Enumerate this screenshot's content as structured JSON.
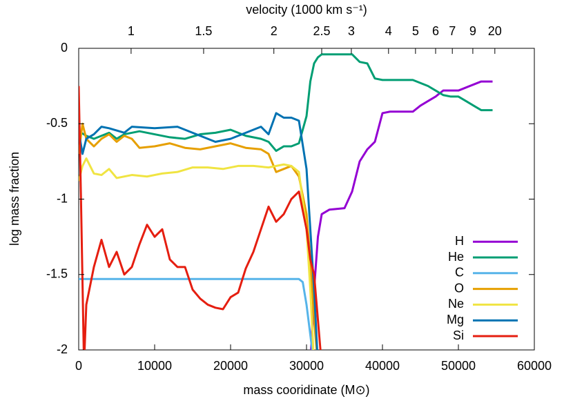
{
  "chart_data": {
    "type": "line",
    "xlabel": "mass cooridinate (M⊙)",
    "ylabel": "log mass fraction",
    "x2label": "velocity (1000 km s⁻¹)",
    "xlim": [
      0,
      60000
    ],
    "ylim": [
      -2,
      0
    ],
    "xticks": [
      0,
      10000,
      20000,
      30000,
      40000,
      50000,
      60000
    ],
    "yticks": [
      -2,
      -1.5,
      -1,
      -0.5,
      0
    ],
    "x2ticks": [
      1,
      1.5,
      2,
      2.5,
      3,
      4,
      5,
      6,
      7,
      9,
      20
    ],
    "x2tick_mass": [
      6900,
      16450,
      25700,
      32000,
      35900,
      40800,
      44350,
      47000,
      49200,
      51900,
      54800
    ],
    "legend": "lower right",
    "series": [
      {
        "name": "H",
        "color": "#9400d3",
        "x": [
          30500,
          31000,
          31500,
          32000,
          33000,
          35000,
          36000,
          37000,
          38000,
          39000,
          40000,
          41000,
          44000,
          45000,
          46000,
          47000,
          48000,
          50000,
          51000,
          52000,
          53000,
          54500
        ],
        "values": [
          -2.1,
          -1.6,
          -1.25,
          -1.1,
          -1.07,
          -1.06,
          -0.95,
          -0.75,
          -0.67,
          -0.62,
          -0.43,
          -0.42,
          -0.42,
          -0.38,
          -0.35,
          -0.32,
          -0.28,
          -0.28,
          -0.26,
          -0.24,
          -0.22,
          -0.22
        ]
      },
      {
        "name": "He",
        "color": "#009e73",
        "x": [
          0,
          1000,
          2000,
          3000,
          4000,
          5000,
          6000,
          8000,
          10000,
          12000,
          14000,
          16000,
          18000,
          20000,
          22000,
          24000,
          25000,
          26000,
          27000,
          28000,
          29000,
          30000,
          30500,
          31000,
          31500,
          32000,
          36000,
          37000,
          38000,
          39000,
          40000,
          44000,
          45000,
          46000,
          47000,
          48000,
          49000,
          50000,
          51000,
          52000,
          53000,
          54500
        ],
        "values": [
          -0.55,
          -0.58,
          -0.6,
          -0.58,
          -0.56,
          -0.6,
          -0.57,
          -0.55,
          -0.57,
          -0.59,
          -0.6,
          -0.57,
          -0.56,
          -0.54,
          -0.58,
          -0.6,
          -0.62,
          -0.68,
          -0.65,
          -0.65,
          -0.63,
          -0.45,
          -0.22,
          -0.1,
          -0.06,
          -0.04,
          -0.04,
          -0.09,
          -0.1,
          -0.2,
          -0.21,
          -0.21,
          -0.23,
          -0.25,
          -0.28,
          -0.31,
          -0.32,
          -0.32,
          -0.35,
          -0.38,
          -0.41,
          -0.41
        ]
      },
      {
        "name": "C",
        "color": "#56b4e9",
        "x": [
          0,
          5000,
          10000,
          15000,
          20000,
          25000,
          29000,
          29500,
          30000,
          30500,
          31000
        ],
        "values": [
          -1.53,
          -1.53,
          -1.53,
          -1.53,
          -1.53,
          -1.53,
          -1.53,
          -1.55,
          -1.7,
          -1.9,
          -2.1
        ]
      },
      {
        "name": "O",
        "color": "#e69f00",
        "x": [
          0,
          500,
          1000,
          2000,
          3000,
          4000,
          5000,
          6000,
          7000,
          8000,
          10000,
          12000,
          14000,
          16000,
          18000,
          20000,
          22000,
          24000,
          25000,
          26000,
          27000,
          28000,
          29000,
          30000,
          30500,
          31000,
          31500
        ],
        "values": [
          -0.7,
          -0.5,
          -0.6,
          -0.65,
          -0.6,
          -0.57,
          -0.62,
          -0.58,
          -0.6,
          -0.66,
          -0.65,
          -0.63,
          -0.66,
          -0.67,
          -0.65,
          -0.63,
          -0.66,
          -0.67,
          -0.7,
          -0.82,
          -0.8,
          -0.78,
          -0.85,
          -1.1,
          -1.4,
          -1.8,
          -2.1
        ]
      },
      {
        "name": "Ne",
        "color": "#f0e442",
        "x": [
          0,
          500,
          1000,
          2000,
          3000,
          4000,
          5000,
          7000,
          9000,
          11000,
          13000,
          15000,
          17000,
          19000,
          21000,
          23000,
          25000,
          27000,
          28000,
          29000,
          30000,
          30500,
          31000
        ],
        "values": [
          -0.88,
          -0.78,
          -0.73,
          -0.83,
          -0.84,
          -0.8,
          -0.86,
          -0.84,
          -0.85,
          -0.83,
          -0.82,
          -0.79,
          -0.79,
          -0.8,
          -0.78,
          -0.78,
          -0.79,
          -0.77,
          -0.78,
          -0.82,
          -1.2,
          -1.6,
          -2.1
        ]
      },
      {
        "name": "Mg",
        "color": "#0072b2",
        "x": [
          0,
          500,
          1000,
          2000,
          3000,
          4000,
          6000,
          7000,
          10000,
          13000,
          15000,
          17000,
          18000,
          20000,
          22000,
          24000,
          25000,
          26000,
          27000,
          28000,
          29000,
          30000,
          30500,
          31000,
          31500
        ],
        "values": [
          -0.55,
          -0.7,
          -0.6,
          -0.57,
          -0.52,
          -0.53,
          -0.56,
          -0.52,
          -0.53,
          -0.52,
          -0.56,
          -0.6,
          -0.62,
          -0.6,
          -0.56,
          -0.52,
          -0.57,
          -0.43,
          -0.46,
          -0.46,
          -0.48,
          -0.8,
          -1.2,
          -1.6,
          -2.1
        ]
      },
      {
        "name": "Si",
        "color": "#e51e10",
        "x": [
          0,
          300,
          700,
          1000,
          2000,
          3000,
          4000,
          5000,
          6000,
          7000,
          8000,
          9000,
          10000,
          11000,
          12000,
          13000,
          14000,
          15000,
          16000,
          17000,
          18000,
          19000,
          20000,
          21000,
          22000,
          23000,
          24000,
          25000,
          26000,
          27000,
          28000,
          29000,
          30000,
          30500,
          31000,
          31500,
          32000
        ],
        "values": [
          -0.25,
          -1.0,
          -2.1,
          -1.7,
          -1.45,
          -1.27,
          -1.45,
          -1.35,
          -1.5,
          -1.45,
          -1.3,
          -1.17,
          -1.25,
          -1.2,
          -1.4,
          -1.45,
          -1.45,
          -1.6,
          -1.66,
          -1.7,
          -1.72,
          -1.73,
          -1.65,
          -1.62,
          -1.46,
          -1.35,
          -1.2,
          -1.05,
          -1.15,
          -1.1,
          -1.0,
          -0.95,
          -1.2,
          -1.4,
          -1.5,
          -1.8,
          -2.1
        ]
      }
    ]
  }
}
